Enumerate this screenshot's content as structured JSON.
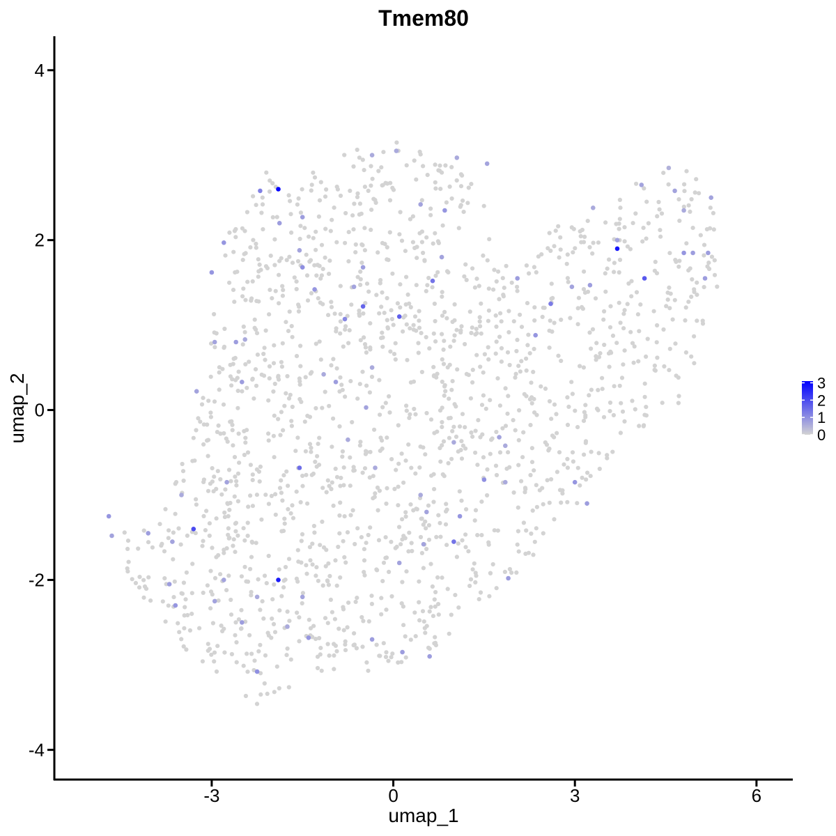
{
  "chart_data": {
    "type": "scatter",
    "title": "Tmem80",
    "xlabel": "umap_1",
    "ylabel": "umap_2",
    "xlim": [
      -5.6,
      6.6
    ],
    "ylim": [
      -4.35,
      4.4
    ],
    "x_ticks": [
      -3,
      0,
      3,
      6
    ],
    "x_tick_labels": [
      "-3",
      "0",
      "3",
      "6"
    ],
    "y_ticks": [
      -4,
      -2,
      0,
      2,
      4
    ],
    "y_tick_labels": [
      "-4",
      "-2",
      "0",
      "2",
      "4"
    ],
    "grid": false,
    "legend": {
      "position": "right",
      "type": "colorbar",
      "ticks": [
        "3",
        "2",
        "1",
        "0"
      ],
      "range": [
        0,
        3.1
      ],
      "low_color": "#d3d3d3",
      "high_color": "#0000ff"
    },
    "expressing_points": [
      {
        "x": -1.9,
        "y": 2.6,
        "v": 3.1
      },
      {
        "x": -2.2,
        "y": 2.58,
        "v": 1.2
      },
      {
        "x": -1.88,
        "y": 2.2,
        "v": 0.8
      },
      {
        "x": -0.35,
        "y": 3.0,
        "v": 0.6
      },
      {
        "x": 0.05,
        "y": 3.05,
        "v": 0.6
      },
      {
        "x": 0.45,
        "y": 2.42,
        "v": 0.7
      },
      {
        "x": 0.85,
        "y": 2.35,
        "v": 0.9
      },
      {
        "x": 1.05,
        "y": 2.97,
        "v": 0.6
      },
      {
        "x": 1.55,
        "y": 2.9,
        "v": 0.7
      },
      {
        "x": -1.5,
        "y": 2.27,
        "v": 0.8
      },
      {
        "x": -2.8,
        "y": 1.97,
        "v": 0.9
      },
      {
        "x": -3.0,
        "y": 1.62,
        "v": 0.9
      },
      {
        "x": -1.55,
        "y": 1.88,
        "v": 0.7
      },
      {
        "x": -1.5,
        "y": 1.68,
        "v": 1.0
      },
      {
        "x": -1.3,
        "y": 1.42,
        "v": 0.9
      },
      {
        "x": -0.5,
        "y": 1.68,
        "v": 0.8
      },
      {
        "x": -0.65,
        "y": 1.45,
        "v": 0.7
      },
      {
        "x": -0.5,
        "y": 1.22,
        "v": 1.6
      },
      {
        "x": 0.1,
        "y": 1.1,
        "v": 1.7
      },
      {
        "x": -0.8,
        "y": 1.07,
        "v": 1.1
      },
      {
        "x": 0.65,
        "y": 1.52,
        "v": 1.4
      },
      {
        "x": 0.8,
        "y": 1.8,
        "v": 0.7
      },
      {
        "x": 2.6,
        "y": 1.25,
        "v": 1.3
      },
      {
        "x": 2.35,
        "y": 0.88,
        "v": 0.9
      },
      {
        "x": 3.7,
        "y": 1.9,
        "v": 2.8
      },
      {
        "x": 3.7,
        "y": 2.0,
        "v": 0.7
      },
      {
        "x": 4.15,
        "y": 1.55,
        "v": 1.8
      },
      {
        "x": 4.1,
        "y": 2.65,
        "v": 0.7
      },
      {
        "x": 4.65,
        "y": 2.58,
        "v": 0.7
      },
      {
        "x": 4.8,
        "y": 1.85,
        "v": 0.9
      },
      {
        "x": 4.95,
        "y": 1.85,
        "v": 0.8
      },
      {
        "x": 5.2,
        "y": 1.85,
        "v": 0.8
      },
      {
        "x": 5.15,
        "y": 1.55,
        "v": 0.8
      },
      {
        "x": 5.25,
        "y": 2.5,
        "v": 0.7
      },
      {
        "x": 3.25,
        "y": 1.47,
        "v": 0.8
      },
      {
        "x": 2.95,
        "y": 1.45,
        "v": 0.7
      },
      {
        "x": 2.05,
        "y": 1.55,
        "v": 0.8
      },
      {
        "x": -3.25,
        "y": 0.22,
        "v": 0.7
      },
      {
        "x": -2.6,
        "y": 0.8,
        "v": 0.8
      },
      {
        "x": -2.45,
        "y": 0.83,
        "v": 0.6
      },
      {
        "x": -2.5,
        "y": 0.33,
        "v": 0.8
      },
      {
        "x": -2.95,
        "y": 0.8,
        "v": 0.7
      },
      {
        "x": -2.25,
        "y": -2.2,
        "v": 0.6
      },
      {
        "x": -1.15,
        "y": 0.42,
        "v": 0.6
      },
      {
        "x": -0.95,
        "y": 0.33,
        "v": 0.8
      },
      {
        "x": -0.45,
        "y": 0.03,
        "v": 0.7
      },
      {
        "x": -0.35,
        "y": 0.5,
        "v": 0.6
      },
      {
        "x": -0.75,
        "y": -0.35,
        "v": 0.6
      },
      {
        "x": -1.55,
        "y": -0.68,
        "v": 1.5
      },
      {
        "x": -3.3,
        "y": -1.4,
        "v": 2.0
      },
      {
        "x": -3.5,
        "y": -1.0,
        "v": 0.6
      },
      {
        "x": -2.75,
        "y": -0.85,
        "v": 0.7
      },
      {
        "x": -4.7,
        "y": -1.25,
        "v": 0.9
      },
      {
        "x": -4.65,
        "y": -1.48,
        "v": 0.7
      },
      {
        "x": -4.05,
        "y": -1.45,
        "v": 0.8
      },
      {
        "x": -3.65,
        "y": -1.55,
        "v": 0.7
      },
      {
        "x": -3.7,
        "y": -2.05,
        "v": 0.8
      },
      {
        "x": -3.6,
        "y": -2.3,
        "v": 0.9
      },
      {
        "x": -2.8,
        "y": -2.0,
        "v": 0.7
      },
      {
        "x": -2.95,
        "y": -2.25,
        "v": 0.7
      },
      {
        "x": -1.9,
        "y": -2.0,
        "v": 2.7
      },
      {
        "x": -1.5,
        "y": -2.2,
        "v": 0.7
      },
      {
        "x": -1.75,
        "y": -2.55,
        "v": 0.6
      },
      {
        "x": -2.5,
        "y": -2.5,
        "v": 0.8
      },
      {
        "x": -2.25,
        "y": -3.08,
        "v": 1.0
      },
      {
        "x": -1.4,
        "y": -2.68,
        "v": 0.9
      },
      {
        "x": -0.35,
        "y": -2.7,
        "v": 0.8
      },
      {
        "x": 0.15,
        "y": -2.85,
        "v": 0.8
      },
      {
        "x": 0.6,
        "y": -2.9,
        "v": 0.8
      },
      {
        "x": 0.1,
        "y": -1.8,
        "v": 0.7
      },
      {
        "x": -0.3,
        "y": -0.68,
        "v": 0.6
      },
      {
        "x": 0.45,
        "y": -1.0,
        "v": 0.6
      },
      {
        "x": 0.55,
        "y": -1.2,
        "v": 0.7
      },
      {
        "x": 1.0,
        "y": -0.38,
        "v": 0.6
      },
      {
        "x": 1.1,
        "y": -1.25,
        "v": 0.9
      },
      {
        "x": 1.0,
        "y": -1.55,
        "v": 1.4
      },
      {
        "x": 0.5,
        "y": -1.58,
        "v": 0.7
      },
      {
        "x": 1.5,
        "y": -0.82,
        "v": 1.0
      },
      {
        "x": 1.75,
        "y": -0.32,
        "v": 0.7
      },
      {
        "x": 1.85,
        "y": -0.42,
        "v": 0.6
      },
      {
        "x": 1.85,
        "y": -0.85,
        "v": 0.6
      },
      {
        "x": 1.9,
        "y": -1.98,
        "v": 0.8
      },
      {
        "x": 3.0,
        "y": -0.85,
        "v": 0.9
      },
      {
        "x": 3.2,
        "y": -1.1,
        "v": 0.8
      },
      {
        "x": 3.3,
        "y": 2.38,
        "v": 0.6
      },
      {
        "x": 4.55,
        "y": 2.85,
        "v": 0.5
      },
      {
        "x": 4.8,
        "y": 2.35,
        "v": 0.6
      }
    ]
  }
}
